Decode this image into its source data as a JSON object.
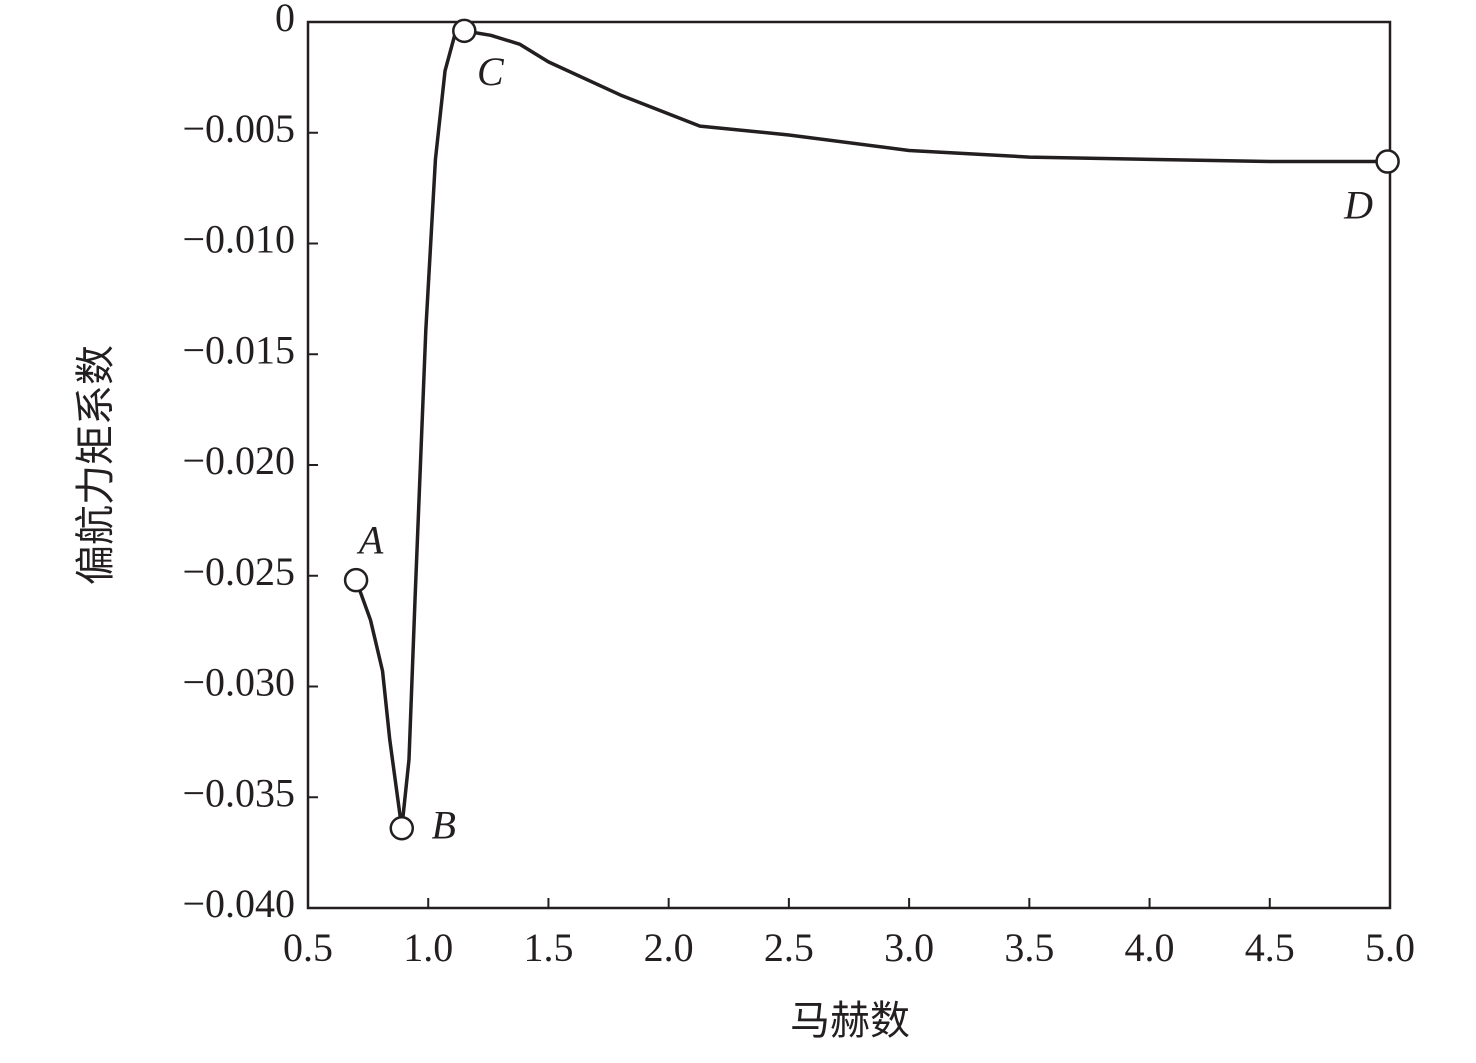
{
  "chart_data": {
    "type": "line",
    "x_label": "马赫数",
    "y_label": "偏航力矩系数",
    "x": [
      0.7,
      0.76,
      0.81,
      0.84,
      0.89,
      0.92,
      0.945,
      0.99,
      1.03,
      1.07,
      1.11,
      1.15,
      1.26,
      1.38,
      1.5,
      1.8,
      2.13,
      2.5,
      3.0,
      3.5,
      4.0,
      4.5,
      4.99
    ],
    "series": [
      {
        "color": "#231f20",
        "values": [
          -0.0252,
          -0.027,
          -0.0293,
          -0.0324,
          -0.0364,
          -0.0333,
          -0.0261,
          -0.0139,
          -0.0062,
          -0.0022,
          -0.0006,
          -0.0004,
          -0.0006,
          -0.001,
          -0.0018,
          -0.0033,
          -0.0047,
          -0.0051,
          -0.0058,
          -0.0061,
          -0.0062,
          -0.0063,
          -0.0063
        ]
      }
    ],
    "annotations": [
      "A",
      "B",
      "C",
      "D"
    ],
    "xlim": [
      0.5,
      5.0
    ],
    "xticks": [
      0.5,
      {
        "value": 1,
        "label": "1.0"
      },
      1.5,
      {
        "value": 2,
        "label": "2.0"
      },
      2.5,
      {
        "value": 3,
        "label": "3.0"
      },
      3.5,
      {
        "value": 4,
        "label": "4.0"
      },
      4.5,
      {
        "value": 5,
        "label": "5.0"
      }
    ],
    "ylim": [
      -0.04,
      0
    ],
    "yticks": [
      0,
      {
        "value": -0.005,
        "label": "−0.005"
      },
      {
        "value": -0.01,
        "label": "−0.010"
      },
      {
        "value": -0.015,
        "label": "−0.015"
      },
      {
        "value": -0.02,
        "label": "−0.020"
      },
      {
        "value": -0.025,
        "label": "−0.025"
      },
      {
        "value": -0.03,
        "label": "−0.030"
      },
      {
        "value": -0.035,
        "label": "−0.035"
      },
      {
        "value": -0.04,
        "label": "−0.040"
      }
    ]
  }
}
